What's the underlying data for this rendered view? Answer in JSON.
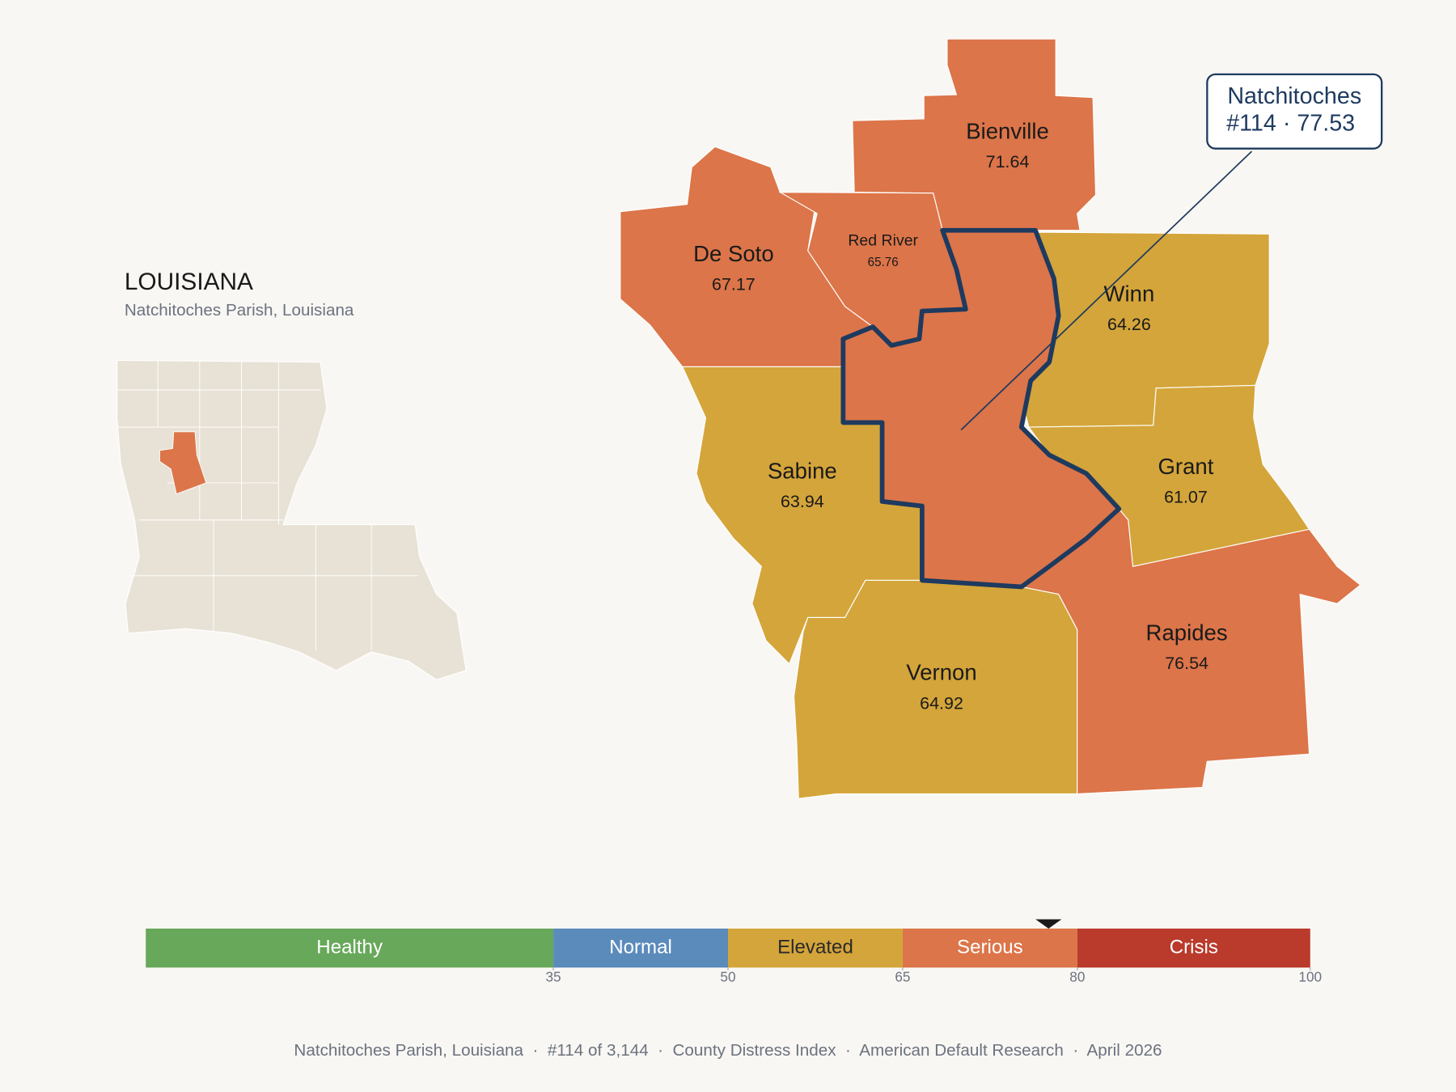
{
  "inset": {
    "title": "LOUISIANA",
    "subtitle": "Natchitoches Parish, Louisiana"
  },
  "map": {
    "focus": {
      "name": "Natchitoches",
      "value": 77.53,
      "value_label": "#114 · 77.53"
    },
    "parishes": [
      {
        "name": "Bienville",
        "value": 71.64
      },
      {
        "name": "De Soto",
        "value": 67.17
      },
      {
        "name": "Red River",
        "value": 65.76
      },
      {
        "name": "Winn",
        "value": 64.26
      },
      {
        "name": "Grant",
        "value": 61.07
      },
      {
        "name": "Sabine",
        "value": 63.94
      },
      {
        "name": "Rapides",
        "value": 76.54
      },
      {
        "name": "Vernon",
        "value": 64.92
      }
    ]
  },
  "scale": {
    "range": [
      0,
      100
    ],
    "ticks": [
      35,
      50,
      65,
      80,
      100
    ],
    "bands": [
      {
        "label": "Healthy",
        "color": "#68a85a",
        "label_color": "#ffffff"
      },
      {
        "label": "Normal",
        "color": "#5b8bbb",
        "label_color": "#ffffff"
      },
      {
        "label": "Elevated",
        "color": "#d4a53a",
        "label_color": "#2a2a2a"
      },
      {
        "label": "Serious",
        "color": "#dc7549",
        "label_color": "#ffffff"
      },
      {
        "label": "Crisis",
        "color": "#ba3a2c",
        "label_color": "#ffffff"
      }
    ]
  },
  "footer": "Natchitoches Parish, Louisiana  ·  #114 of 3,144  ·  County Distress Index  ·  American Default Research  ·  April 2026"
}
